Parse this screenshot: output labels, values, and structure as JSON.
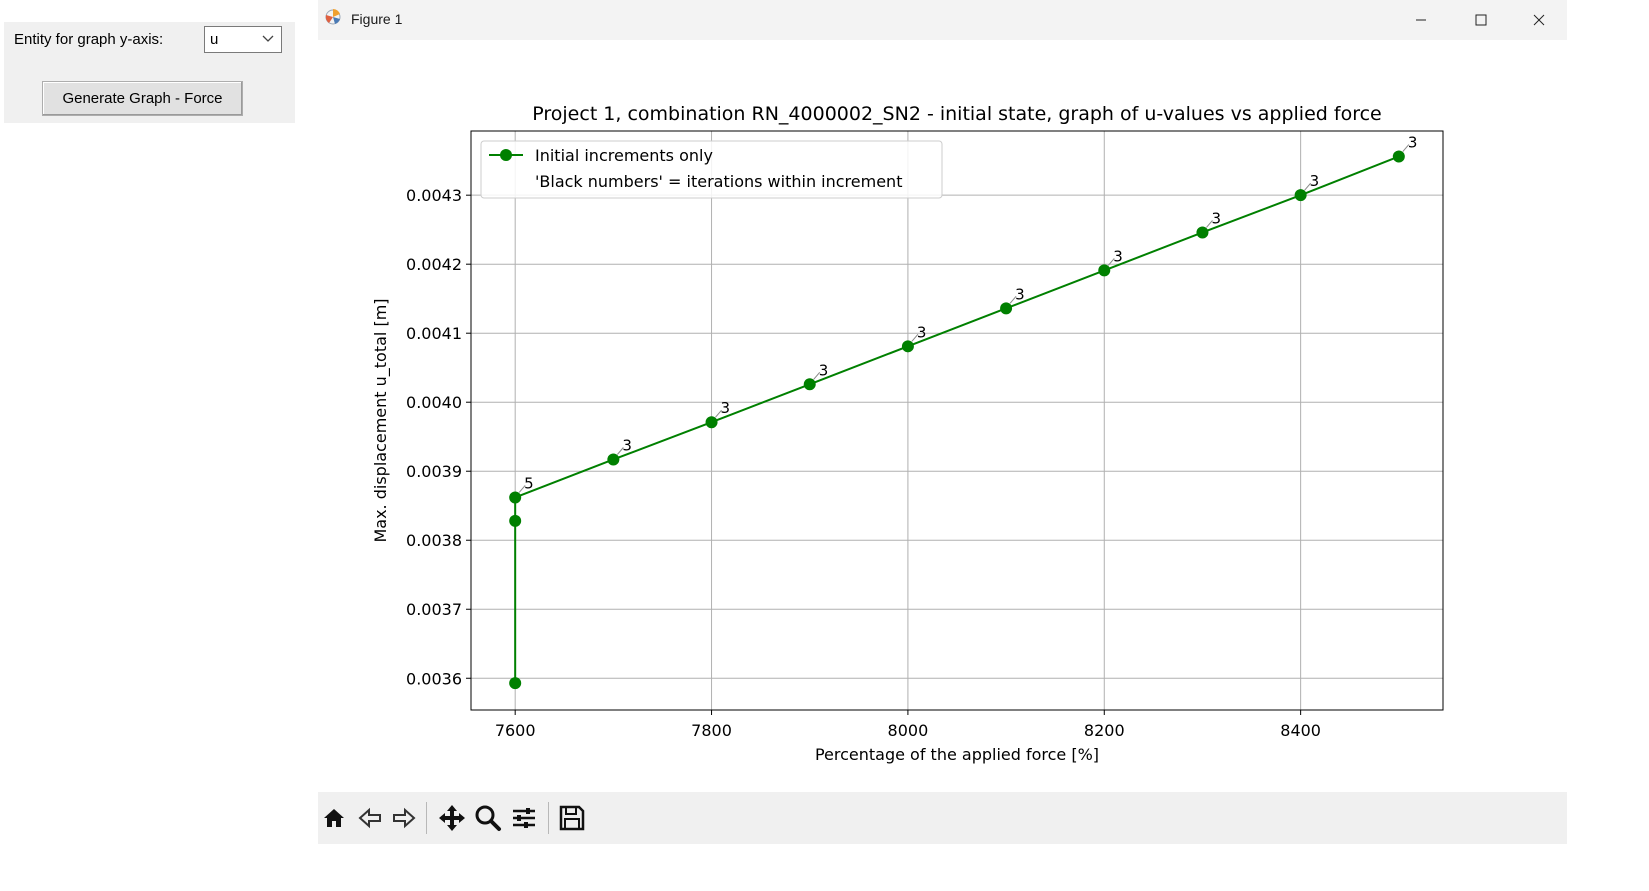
{
  "control_panel": {
    "entity_label": "Entity for graph y-axis:",
    "entity_value": "u",
    "generate_button": "Generate Graph - Force"
  },
  "window": {
    "title": "Figure 1"
  },
  "toolbar": {
    "icons": [
      "home-icon",
      "back-icon",
      "forward-icon",
      "pan-icon",
      "zoom-icon",
      "configure-subplots-icon",
      "save-icon"
    ]
  },
  "chart_data": {
    "type": "line",
    "title": "Project 1, combination RN_4000002_SN2 - initial state, graph of u-values vs applied force",
    "xlabel": "Percentage of the applied force [%]",
    "ylabel": "Max. displacement u_total [m]",
    "xlim": [
      7555,
      8545
    ],
    "ylim": [
      0.003554,
      0.004393
    ],
    "xticks": [
      7600,
      7800,
      8000,
      8200,
      8400
    ],
    "yticks": [
      0.0036,
      0.0037,
      0.0038,
      0.0039,
      0.004,
      0.0041,
      0.0042,
      0.0043
    ],
    "ytick_labels": [
      "0.0036",
      "0.0037",
      "0.0038",
      "0.0039",
      "0.0040",
      "0.0041",
      "0.0042",
      "0.0043"
    ],
    "grid": true,
    "legend_position": "upper-left",
    "color": "#008000",
    "series": [
      {
        "name": "Initial increments only",
        "x": [
          7600,
          7600,
          7600,
          7700,
          7800,
          7900,
          8000,
          8100,
          8200,
          8300,
          8400,
          8500
        ],
        "y": [
          0.003593,
          0.003828,
          0.003862,
          0.003917,
          0.003971,
          0.004026,
          0.004081,
          0.004136,
          0.004191,
          0.004246,
          0.0043,
          0.004356
        ]
      }
    ],
    "annotations": [
      {
        "x": 7600,
        "y": 0.003862,
        "text": "5"
      },
      {
        "x": 7700,
        "y": 0.003917,
        "text": "3"
      },
      {
        "x": 7800,
        "y": 0.003971,
        "text": "3"
      },
      {
        "x": 7900,
        "y": 0.004026,
        "text": "3"
      },
      {
        "x": 8000,
        "y": 0.004081,
        "text": "3"
      },
      {
        "x": 8100,
        "y": 0.004136,
        "text": "3"
      },
      {
        "x": 8200,
        "y": 0.004191,
        "text": "3"
      },
      {
        "x": 8300,
        "y": 0.004246,
        "text": "3"
      },
      {
        "x": 8400,
        "y": 0.0043,
        "text": "3"
      },
      {
        "x": 8500,
        "y": 0.004356,
        "text": "3"
      }
    ],
    "legend_note": "'Black numbers' = iterations within increment"
  }
}
